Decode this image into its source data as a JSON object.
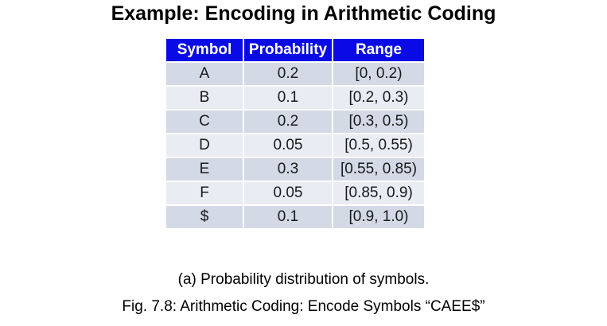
{
  "title": "Example: Encoding in Arithmetic Coding",
  "table": {
    "headers": [
      "Symbol",
      "Probability",
      "Range"
    ],
    "rows": [
      [
        "A",
        "0.2",
        "[0, 0.2)"
      ],
      [
        "B",
        "0.1",
        "[0.2, 0.3)"
      ],
      [
        "C",
        "0.2",
        "[0.3, 0.5)"
      ],
      [
        "D",
        "0.05",
        "[0.5, 0.55)"
      ],
      [
        "E",
        "0.3",
        "[0.55, 0.85)"
      ],
      [
        "F",
        "0.05",
        "[0.85, 0.9)"
      ],
      [
        "$",
        "0.1",
        "[0.9, 1.0)"
      ]
    ]
  },
  "captions": {
    "sub": "(a) Probability distribution of symbols.",
    "fig": "Fig. 7.8: Arithmetic Coding: Encode Symbols “CAEE$”"
  },
  "colors": {
    "header_bg": "#0a0ae6",
    "header_text": "#ffffff",
    "row_band_dark": "#d4d9e6",
    "row_band_light": "#eaecf4",
    "title_text": "#000000"
  }
}
